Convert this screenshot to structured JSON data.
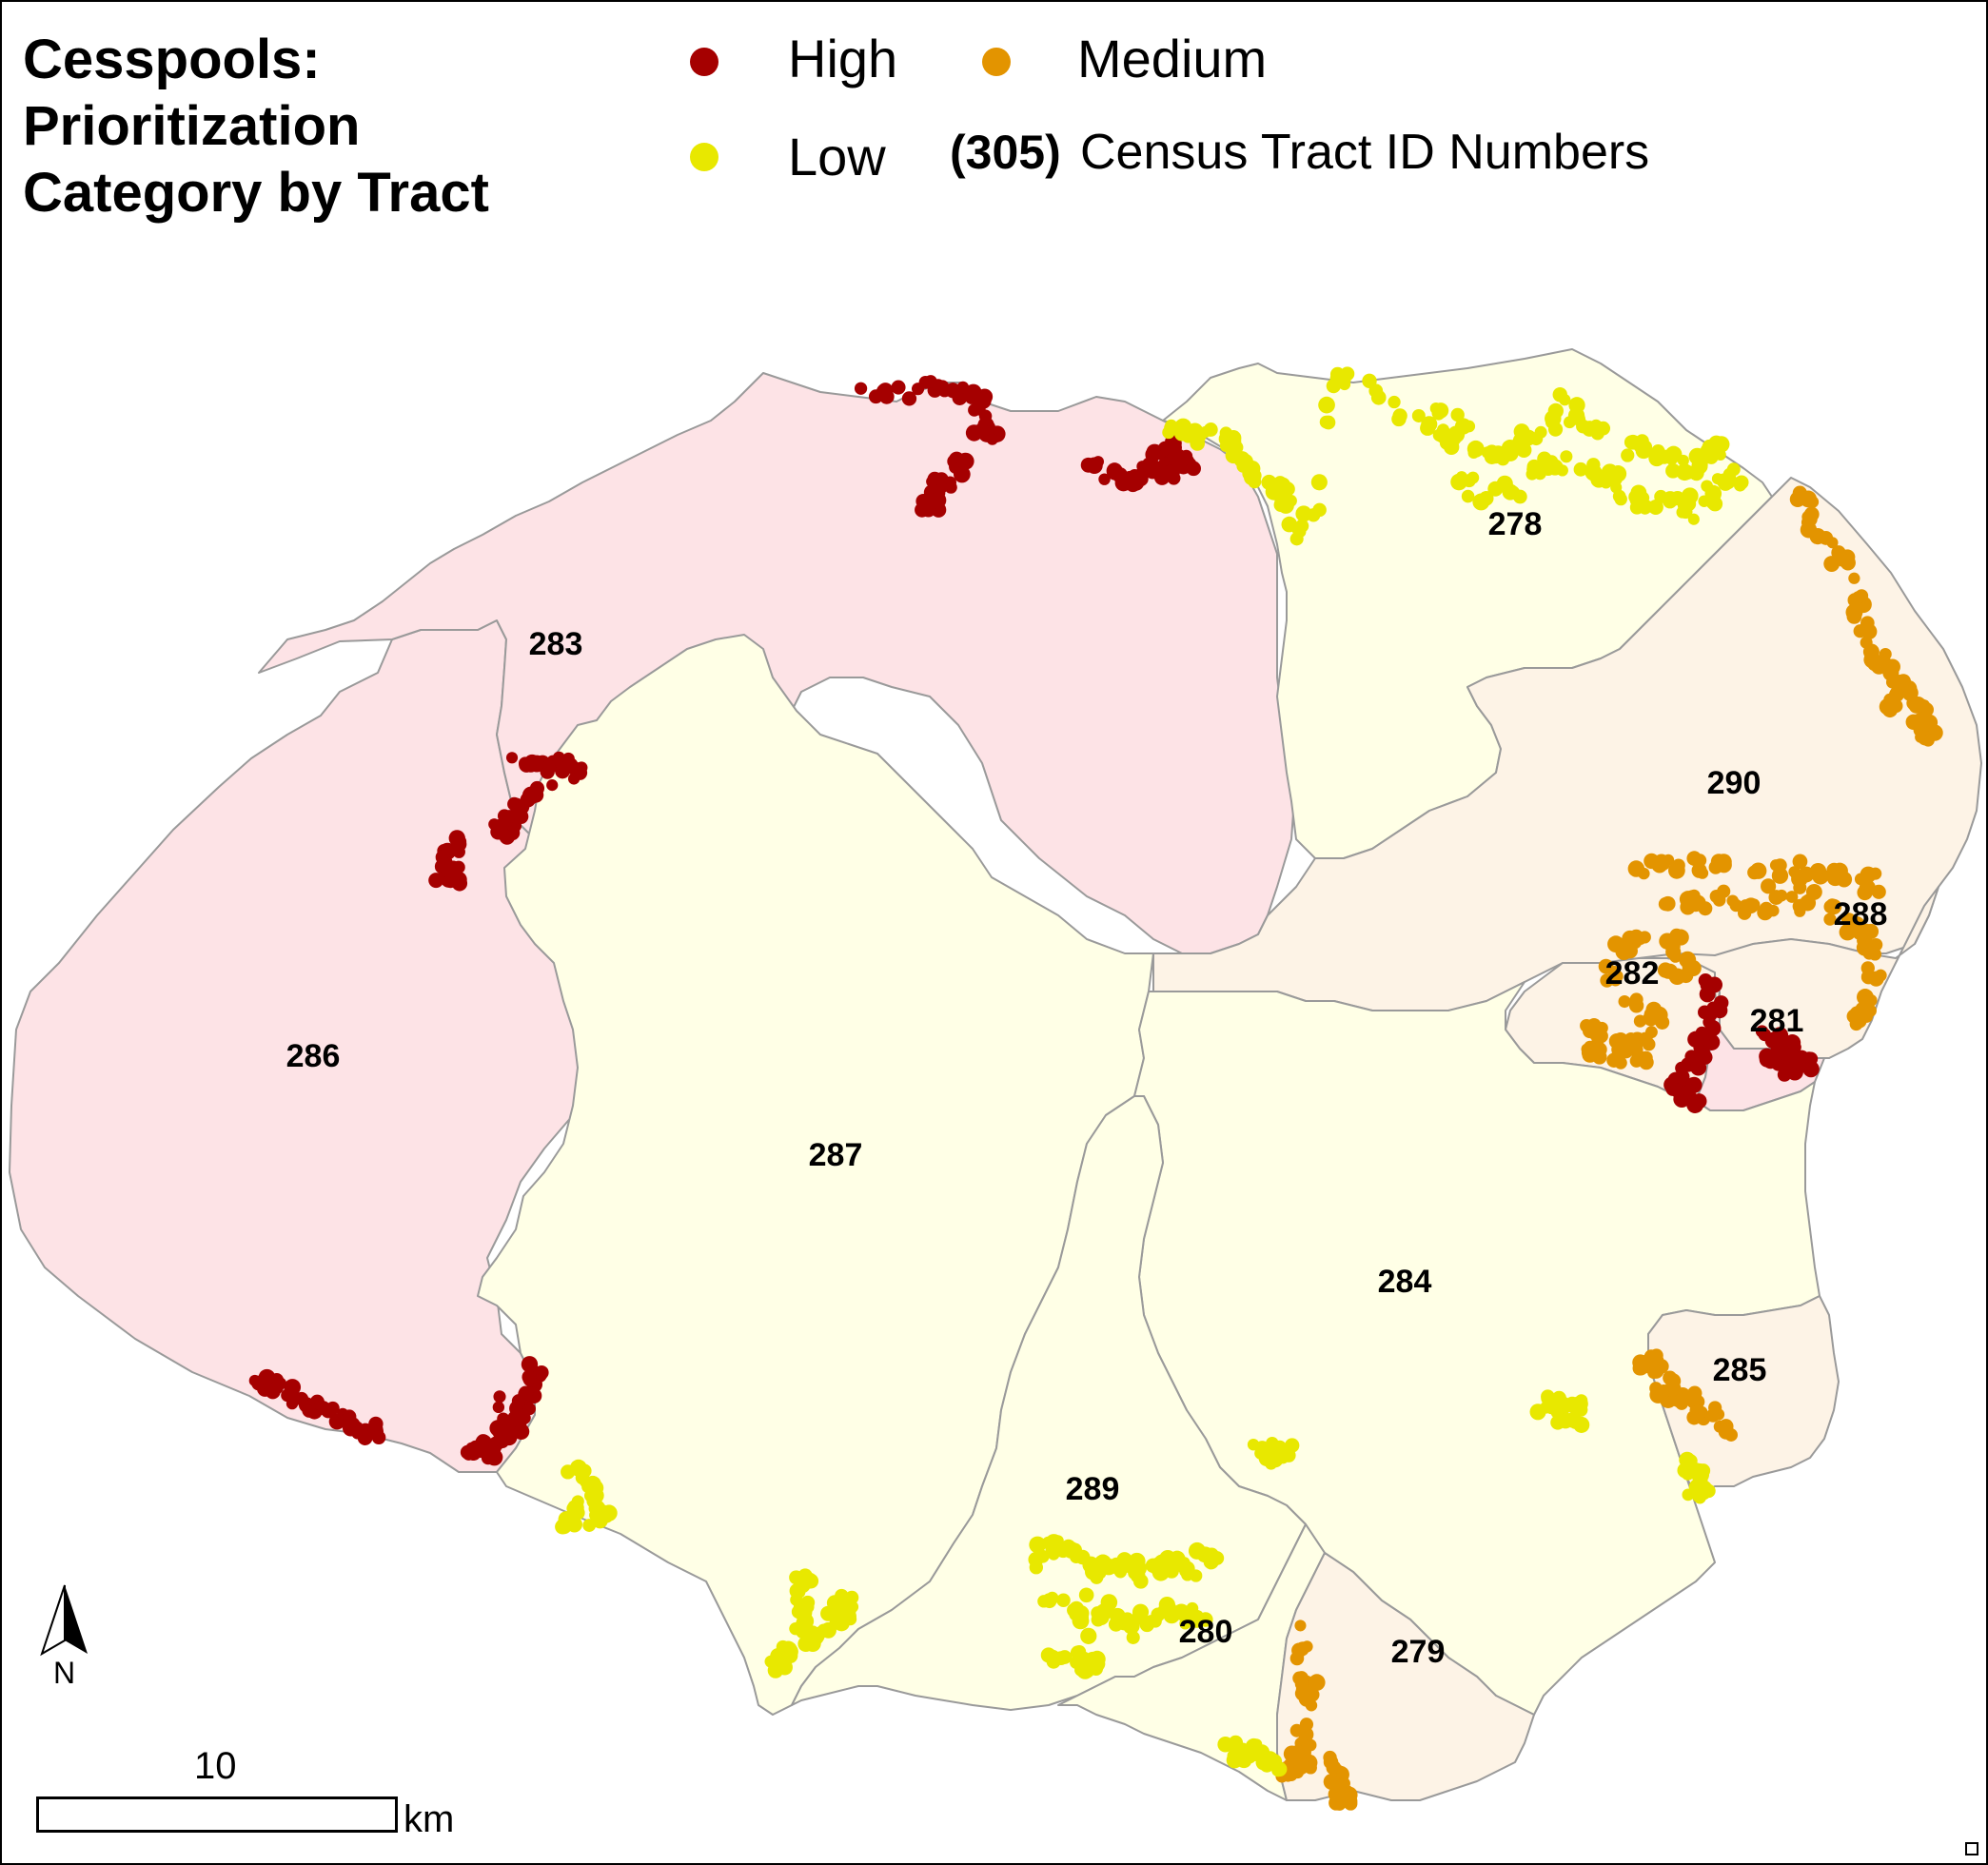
{
  "title": {
    "line1": "Cesspools:",
    "line2": "Prioritization",
    "line3": "Category by Tract"
  },
  "legend": {
    "high": {
      "label": "High",
      "color": "#a50000"
    },
    "medium": {
      "label": "Medium",
      "color": "#e39400"
    },
    "low": {
      "label": "Low",
      "color": "#e8e800"
    },
    "tract_sample": "(305)",
    "tract_label": "Census Tract ID Numbers"
  },
  "tract_fills": {
    "high": "#fde3e6",
    "medium": "#fdf3e6",
    "low": "#ffffe6",
    "border": "#9a9a9a"
  },
  "tracts": [
    {
      "id": "278",
      "category": "low"
    },
    {
      "id": "279",
      "category": "medium"
    },
    {
      "id": "280",
      "category": "low"
    },
    {
      "id": "281",
      "category": "high"
    },
    {
      "id": "282",
      "category": "medium"
    },
    {
      "id": "283",
      "category": "high"
    },
    {
      "id": "284",
      "category": "low"
    },
    {
      "id": "285",
      "category": "medium"
    },
    {
      "id": "286",
      "category": "high"
    },
    {
      "id": "287",
      "category": "low"
    },
    {
      "id": "288",
      "category": "medium"
    },
    {
      "id": "289",
      "category": "low"
    },
    {
      "id": "290",
      "category": "medium"
    }
  ],
  "north_arrow": {
    "label": "N",
    "icon": "north-arrow-icon"
  },
  "scale_bar": {
    "value": "10",
    "unit": "km"
  }
}
